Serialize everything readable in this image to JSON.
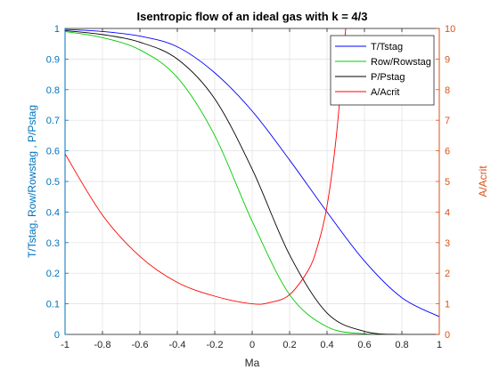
{
  "chart_data": {
    "type": "line",
    "title": "Isentropic flow of an ideal gas with k = 4/3",
    "xlabel": "Ma",
    "ylabel_left": "T/Tstag, Row/Rowstag , P/Pstag",
    "ylabel_right": "A/Acrit",
    "xlim": [
      -1,
      1
    ],
    "ylim_left": [
      0,
      1
    ],
    "ylim_right": [
      0,
      10
    ],
    "x_ticks": [
      "-1",
      "-0.8",
      "-0.6",
      "-0.4",
      "-0.2",
      "0",
      "0.2",
      "0.4",
      "0.6",
      "0.8",
      "1"
    ],
    "y_ticks_left": [
      "0",
      "0.1",
      "0.2",
      "0.3",
      "0.4",
      "0.5",
      "0.6",
      "0.7",
      "0.8",
      "0.9",
      "1"
    ],
    "y_ticks_right": [
      "0",
      "1",
      "2",
      "3",
      "4",
      "5",
      "6",
      "7",
      "8",
      "9",
      "10"
    ],
    "grid": true,
    "legend_position": "top-right",
    "colors": {
      "left_axis": "#0072BD",
      "right_axis": "#D95319",
      "grid": "#dfdfdf",
      "axes": "#262626"
    },
    "series": [
      {
        "name": "T/Tstag",
        "axis": "left",
        "color": "#0000ff",
        "x": [
          -1,
          -0.8,
          -0.6,
          -0.4,
          -0.2,
          0,
          0.2,
          0.4,
          0.6,
          0.8,
          1
        ],
        "values": [
          0.997,
          0.99,
          0.975,
          0.94,
          0.855,
          0.73,
          0.57,
          0.4,
          0.24,
          0.12,
          0.058
        ]
      },
      {
        "name": "Row/Rowstag",
        "axis": "left",
        "color": "#00cc00",
        "x": [
          -1,
          -0.8,
          -0.6,
          -0.4,
          -0.2,
          0,
          0.2,
          0.4,
          0.6,
          0.8,
          1
        ],
        "values": [
          0.99,
          0.97,
          0.93,
          0.84,
          0.65,
          0.37,
          0.13,
          0.025,
          0.002,
          0,
          0
        ]
      },
      {
        "name": "P/Pstag",
        "axis": "left",
        "color": "#000000",
        "x": [
          -1,
          -0.8,
          -0.6,
          -0.4,
          -0.2,
          0,
          0.2,
          0.4,
          0.6,
          0.8,
          1
        ],
        "values": [
          0.993,
          0.98,
          0.955,
          0.9,
          0.77,
          0.54,
          0.26,
          0.07,
          0.01,
          0,
          0
        ]
      },
      {
        "name": "A/Acrit",
        "axis": "right",
        "color": "#ff0000",
        "x": [
          -1,
          -0.8,
          -0.6,
          -0.4,
          -0.2,
          0,
          0.1,
          0.2,
          0.3,
          0.35,
          0.4,
          0.45,
          0.5
        ],
        "values": [
          5.9,
          3.9,
          2.55,
          1.7,
          1.25,
          1.0,
          1.05,
          1.3,
          2.1,
          2.9,
          4.2,
          6.5,
          10.0
        ]
      }
    ]
  }
}
